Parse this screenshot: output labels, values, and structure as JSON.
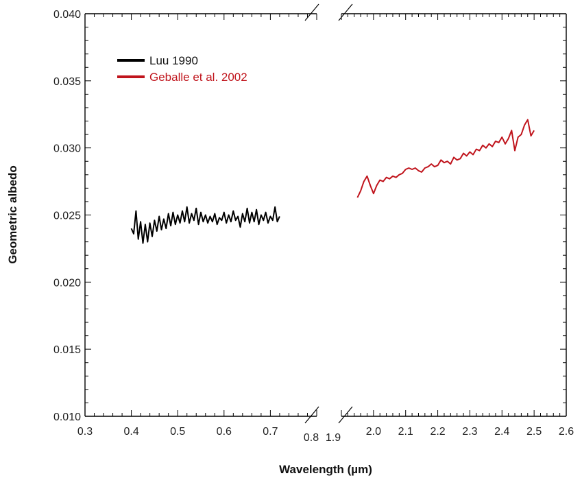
{
  "chart_data": {
    "type": "line",
    "xlabel": "Wavelength (µm)",
    "ylabel": "Geometric albedo",
    "ylim": [
      0.01,
      0.04
    ],
    "y_ticks": [
      "0.010",
      "0.015",
      "0.020",
      "0.025",
      "0.030",
      "0.035",
      "0.040"
    ],
    "x_axis_break": true,
    "x_segments": [
      {
        "xlim": [
          0.3,
          0.8
        ],
        "ticks": [
          "0.3",
          "0.4",
          "0.5",
          "0.6",
          "0.7",
          "0.8"
        ]
      },
      {
        "xlim": [
          1.9,
          2.6
        ],
        "ticks": [
          "1.9",
          "2.0",
          "2.1",
          "2.2",
          "2.3",
          "2.4",
          "2.5",
          "2.6"
        ]
      }
    ],
    "legend": {
      "position": "top-left"
    },
    "series": [
      {
        "name": "Luu 1990",
        "color": "#000000",
        "segment": 0,
        "x": [
          0.4,
          0.405,
          0.41,
          0.415,
          0.42,
          0.425,
          0.43,
          0.435,
          0.44,
          0.445,
          0.45,
          0.455,
          0.46,
          0.465,
          0.47,
          0.475,
          0.48,
          0.485,
          0.49,
          0.495,
          0.5,
          0.505,
          0.51,
          0.515,
          0.52,
          0.525,
          0.53,
          0.535,
          0.54,
          0.545,
          0.55,
          0.555,
          0.56,
          0.565,
          0.57,
          0.575,
          0.58,
          0.585,
          0.59,
          0.595,
          0.6,
          0.605,
          0.61,
          0.615,
          0.62,
          0.625,
          0.63,
          0.635,
          0.64,
          0.645,
          0.65,
          0.655,
          0.66,
          0.665,
          0.67,
          0.675,
          0.68,
          0.685,
          0.69,
          0.695,
          0.7,
          0.705,
          0.71,
          0.715,
          0.72
        ],
        "y": [
          0.024,
          0.0236,
          0.0253,
          0.0232,
          0.0245,
          0.0229,
          0.0243,
          0.023,
          0.0244,
          0.0234,
          0.0246,
          0.0238,
          0.0249,
          0.0239,
          0.0247,
          0.024,
          0.0251,
          0.0242,
          0.0252,
          0.0243,
          0.025,
          0.0244,
          0.0253,
          0.0245,
          0.0256,
          0.0244,
          0.0251,
          0.0246,
          0.0255,
          0.0243,
          0.0252,
          0.0245,
          0.025,
          0.0244,
          0.0249,
          0.0245,
          0.0251,
          0.0243,
          0.0248,
          0.0246,
          0.0252,
          0.0244,
          0.025,
          0.0245,
          0.0253,
          0.0246,
          0.0249,
          0.0241,
          0.0251,
          0.0245,
          0.0255,
          0.0244,
          0.0252,
          0.0245,
          0.0254,
          0.0243,
          0.025,
          0.0246,
          0.0252,
          0.0244,
          0.0249,
          0.0246,
          0.0256,
          0.0245,
          0.0249
        ]
      },
      {
        "name": "Geballe et al. 2002",
        "color": "#c0141c",
        "segment": 1,
        "x": [
          1.95,
          1.96,
          1.97,
          1.98,
          1.99,
          2.0,
          2.01,
          2.02,
          2.03,
          2.04,
          2.05,
          2.06,
          2.07,
          2.08,
          2.09,
          2.1,
          2.11,
          2.12,
          2.13,
          2.14,
          2.15,
          2.16,
          2.17,
          2.18,
          2.19,
          2.2,
          2.21,
          2.22,
          2.23,
          2.24,
          2.25,
          2.26,
          2.27,
          2.28,
          2.29,
          2.3,
          2.31,
          2.32,
          2.33,
          2.34,
          2.35,
          2.36,
          2.37,
          2.38,
          2.39,
          2.4,
          2.41,
          2.42,
          2.43,
          2.44,
          2.45,
          2.46,
          2.47,
          2.48,
          2.49,
          2.5
        ],
        "y": [
          0.0263,
          0.0268,
          0.0275,
          0.0279,
          0.0272,
          0.0266,
          0.0272,
          0.0276,
          0.0275,
          0.0278,
          0.0277,
          0.0279,
          0.0278,
          0.028,
          0.0281,
          0.0284,
          0.0285,
          0.0284,
          0.0285,
          0.0283,
          0.0282,
          0.0285,
          0.0286,
          0.0288,
          0.0286,
          0.0287,
          0.0291,
          0.0289,
          0.029,
          0.0288,
          0.0293,
          0.0291,
          0.0292,
          0.0296,
          0.0294,
          0.0297,
          0.0295,
          0.0299,
          0.0298,
          0.0302,
          0.03,
          0.0303,
          0.0301,
          0.0305,
          0.0304,
          0.0308,
          0.0303,
          0.0307,
          0.0313,
          0.0298,
          0.0308,
          0.031,
          0.0317,
          0.0321,
          0.0309,
          0.0313
        ]
      }
    ]
  }
}
